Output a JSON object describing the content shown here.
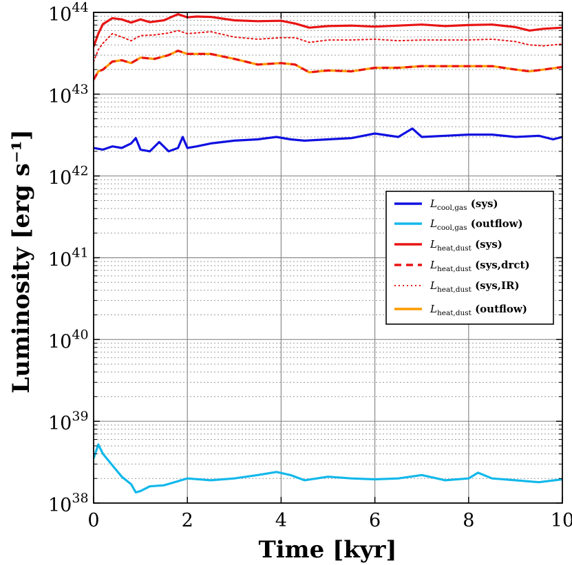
{
  "chart_data": {
    "type": "line",
    "xlabel": "Time [kyr]",
    "ylabel": "Luminosity [erg s⁻¹]",
    "xlim": [
      0,
      10
    ],
    "ylim_log10": [
      38,
      44
    ],
    "y_scale": "log",
    "x_ticks": [
      "0",
      "2",
      "4",
      "6",
      "8",
      "10"
    ],
    "y_ticks": [
      {
        "base": "10",
        "exp": "38"
      },
      {
        "base": "10",
        "exp": "39"
      },
      {
        "base": "10",
        "exp": "40"
      },
      {
        "base": "10",
        "exp": "41"
      },
      {
        "base": "10",
        "exp": "42"
      },
      {
        "base": "10",
        "exp": "43"
      },
      {
        "base": "10",
        "exp": "44"
      }
    ],
    "grid": true,
    "legend_position": "center-right",
    "series": [
      {
        "name": "L_cool,gas (sys)",
        "legend": {
          "sym": "L",
          "sub": "cool,gas",
          "rest": " (sys)"
        },
        "color": "#1010e0",
        "style": "solid",
        "x": [
          0,
          0.2,
          0.4,
          0.6,
          0.8,
          0.9,
          1.0,
          1.2,
          1.4,
          1.6,
          1.8,
          1.9,
          2.0,
          2.2,
          2.5,
          3.0,
          3.5,
          3.9,
          4.2,
          4.5,
          5.0,
          5.5,
          6.0,
          6.5,
          6.8,
          7.0,
          7.5,
          8.0,
          8.5,
          9.0,
          9.5,
          9.8,
          10.0
        ],
        "y": [
          2.2e+42,
          2.1e+42,
          2.3e+42,
          2.2e+42,
          2.5e+42,
          2.9e+42,
          2.1e+42,
          2e+42,
          2.6e+42,
          2e+42,
          2.2e+42,
          3e+42,
          2.2e+42,
          2.3e+42,
          2.5e+42,
          2.7e+42,
          2.8e+42,
          3e+42,
          2.8e+42,
          2.7e+42,
          2.8e+42,
          2.9e+42,
          3.3e+42,
          3e+42,
          3.8e+42,
          3e+42,
          3.1e+42,
          3.2e+42,
          3.2e+42,
          3e+42,
          3.1e+42,
          2.8e+42,
          3e+42
        ]
      },
      {
        "name": "L_cool,gas (outflow)",
        "legend": {
          "sym": "L",
          "sub": "cool,gas",
          "rest": " (outflow)"
        },
        "color": "#12b8ea",
        "style": "solid",
        "x": [
          0,
          0.1,
          0.2,
          0.4,
          0.6,
          0.8,
          0.9,
          1.0,
          1.2,
          1.5,
          2.0,
          2.5,
          3.0,
          3.5,
          3.9,
          4.2,
          4.5,
          5.0,
          5.5,
          6.0,
          6.5,
          7.0,
          7.5,
          8.0,
          8.2,
          8.5,
          9.0,
          9.5,
          10.0
        ],
        "y": [
          3.5e+38,
          5.2e+38,
          4e+38,
          2.9e+38,
          2.1e+38,
          1.7e+38,
          1.35e+38,
          1.4e+38,
          1.6e+38,
          1.65e+38,
          2e+38,
          1.9e+38,
          2e+38,
          2.2e+38,
          2.4e+38,
          2.2e+38,
          1.9e+38,
          2.1e+38,
          2e+38,
          1.95e+38,
          2e+38,
          2.2e+38,
          1.9e+38,
          2e+38,
          2.35e+38,
          2e+38,
          1.9e+38,
          1.8e+38,
          1.95e+38
        ]
      },
      {
        "name": "L_heat,dust (sys)",
        "legend": {
          "sym": "L",
          "sub": "heat,dust",
          "rest": " (sys)"
        },
        "color": "#e81414",
        "style": "solid",
        "x": [
          0,
          0.1,
          0.2,
          0.4,
          0.6,
          0.8,
          1.0,
          1.2,
          1.5,
          1.8,
          2.0,
          2.2,
          2.5,
          3.0,
          3.5,
          4.0,
          4.3,
          4.6,
          5.0,
          5.5,
          6.0,
          6.5,
          7.0,
          7.5,
          8.0,
          8.5,
          9.0,
          9.3,
          9.6,
          10.0
        ],
        "y": [
          3.8e+43,
          5.5e+43,
          7.2e+43,
          8.5e+43,
          8.2e+43,
          7.5e+43,
          8.2e+43,
          7.6e+43,
          8e+43,
          9.5e+43,
          8.7e+43,
          8.9e+43,
          8.8e+43,
          8e+43,
          7.8e+43,
          7.9e+43,
          7.3e+43,
          6.5e+43,
          6.8e+43,
          6.9e+43,
          6.7e+43,
          6.9e+43,
          7.1e+43,
          6.8e+43,
          7e+43,
          7.1e+43,
          6.6e+43,
          6e+43,
          6.3e+43,
          6.5e+43
        ]
      },
      {
        "name": "L_heat,dust (sys,drct)",
        "legend": {
          "sym": "L",
          "sub": "heat,dust",
          "rest": " (sys,drct)"
        },
        "color": "#e81414",
        "style": "dashed",
        "x": [
          0,
          0.1,
          0.2,
          0.4,
          0.6,
          0.8,
          1.0,
          1.3,
          1.6,
          1.8,
          2.0,
          2.5,
          3.0,
          3.5,
          4.0,
          4.3,
          4.6,
          5.0,
          5.5,
          6.0,
          6.5,
          7.0,
          7.5,
          8.0,
          8.5,
          9.0,
          9.3,
          9.6,
          10.0
        ],
        "y": [
          1.5e+43,
          1.9e+43,
          2e+43,
          2.5e+43,
          2.6e+43,
          2.4e+43,
          2.8e+43,
          2.7e+43,
          3e+43,
          3.4e+43,
          3.1e+43,
          3.1e+43,
          2.7e+43,
          2.3e+43,
          2.4e+43,
          2.3e+43,
          1.85e+43,
          1.95e+43,
          1.9e+43,
          2.1e+43,
          2.1e+43,
          2.2e+43,
          2.2e+43,
          2.2e+43,
          2.2e+43,
          2e+43,
          1.9e+43,
          2e+43,
          2.15e+43
        ]
      },
      {
        "name": "L_heat,dust (sys,IR)",
        "legend": {
          "sym": "L",
          "sub": "heat,dust",
          "rest": " (sys,IR)"
        },
        "color": "#e81414",
        "style": "dotted",
        "x": [
          0,
          0.1,
          0.2,
          0.4,
          0.6,
          0.8,
          1.0,
          1.3,
          1.6,
          1.8,
          2.0,
          2.5,
          3.0,
          3.5,
          4.0,
          4.3,
          4.6,
          5.0,
          5.5,
          6.0,
          6.5,
          7.0,
          7.5,
          8.0,
          8.5,
          9.0,
          9.3,
          9.6,
          10.0
        ],
        "y": [
          2.5e+43,
          3.5e+43,
          4.2e+43,
          5.5e+43,
          5e+43,
          4.5e+43,
          5.2e+43,
          5.3e+43,
          5.6e+43,
          6e+43,
          5.5e+43,
          5.8e+43,
          5e+43,
          4.7e+43,
          4.9e+43,
          4.9e+43,
          4.3e+43,
          4.6e+43,
          4.6e+43,
          4.7e+43,
          4.5e+43,
          4.6e+43,
          4.6e+43,
          4.6e+43,
          4.7e+43,
          4.4e+43,
          4e+43,
          3.9e+43,
          4.1e+43
        ]
      },
      {
        "name": "L_heat,dust (outflow)",
        "legend": {
          "sym": "L",
          "sub": "heat,dust",
          "rest": " (outflow)"
        },
        "color": "#ff9a00",
        "style": "solid",
        "x": [
          0,
          0.1,
          0.2,
          0.4,
          0.6,
          0.8,
          1.0,
          1.3,
          1.6,
          1.8,
          2.0,
          2.5,
          3.0,
          3.5,
          4.0,
          4.3,
          4.6,
          5.0,
          5.5,
          6.0,
          6.5,
          7.0,
          7.5,
          8.0,
          8.5,
          9.0,
          9.3,
          9.6,
          10.0
        ],
        "y": [
          1.5e+43,
          1.9e+43,
          2e+43,
          2.5e+43,
          2.6e+43,
          2.4e+43,
          2.8e+43,
          2.7e+43,
          3e+43,
          3.4e+43,
          3.1e+43,
          3.1e+43,
          2.7e+43,
          2.3e+43,
          2.4e+43,
          2.3e+43,
          1.85e+43,
          1.95e+43,
          1.9e+43,
          2.1e+43,
          2.1e+43,
          2.2e+43,
          2.2e+43,
          2.2e+43,
          2.2e+43,
          2e+43,
          1.9e+43,
          2e+43,
          2.15e+43
        ]
      }
    ]
  }
}
